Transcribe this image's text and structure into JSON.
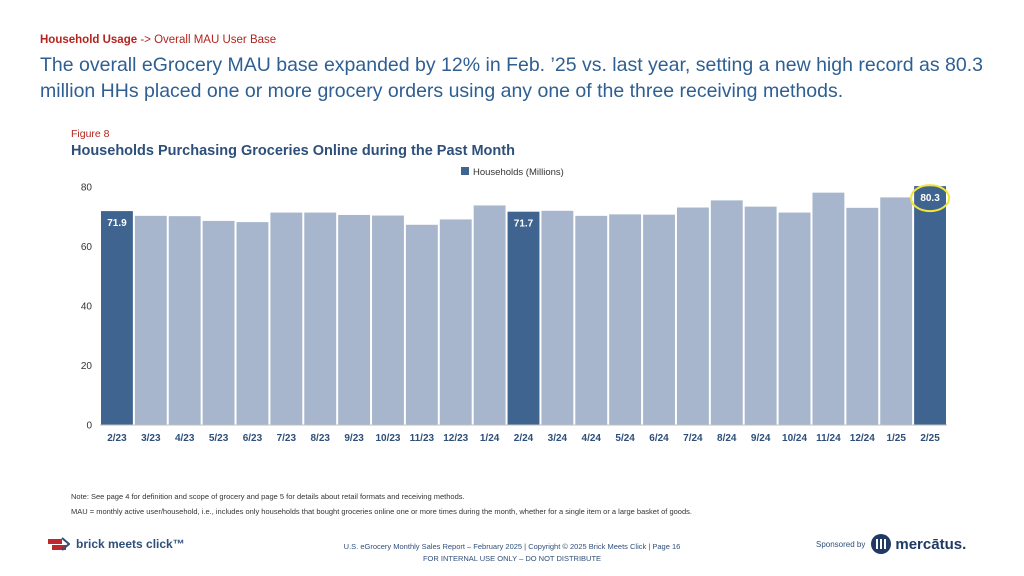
{
  "header": {
    "section": "Household Usage",
    "arrow": "->",
    "subsection": "Overall MAU User Base",
    "headline": "The overall eGrocery MAU base expanded by 12% in Feb. ’25 vs. last year, setting a new high record as 80.3 million HHs placed one or more grocery orders using any one of the three receiving methods."
  },
  "figure": {
    "label": "Figure 8",
    "title": "Households Purchasing Groceries Online during the Past Month"
  },
  "chart_data": {
    "type": "bar",
    "legend": {
      "label": "Households (Millions)",
      "position": "top-center"
    },
    "categories": [
      "2/23",
      "3/23",
      "4/23",
      "5/23",
      "6/23",
      "7/23",
      "8/23",
      "9/23",
      "10/23",
      "11/23",
      "12/23",
      "1/24",
      "2/24",
      "3/24",
      "4/24",
      "5/24",
      "6/24",
      "7/24",
      "8/24",
      "9/24",
      "10/24",
      "11/24",
      "12/24",
      "1/25",
      "2/25"
    ],
    "values": [
      71.9,
      70.3,
      70.2,
      68.6,
      68.2,
      71.4,
      71.4,
      70.6,
      70.4,
      67.3,
      69.1,
      73.8,
      71.7,
      72.0,
      70.3,
      70.8,
      70.7,
      73.1,
      75.5,
      73.4,
      71.4,
      78.1,
      73.0,
      76.5,
      80.3
    ],
    "highlight": [
      0,
      12,
      24
    ],
    "data_labels": {
      "0": "71.9",
      "12": "71.7",
      "24": "80.3"
    },
    "circled_label": 24,
    "ylim": [
      0,
      80
    ],
    "yticks": [
      0,
      20,
      40,
      60,
      80
    ],
    "colors": {
      "base": "#a7b6cc",
      "highlight": "#3f6490",
      "circle": "#f2e53a"
    },
    "grid": false
  },
  "notes": {
    "line1": "Note: See page 4 for definition and scope of grocery and page 5 for details about retail formats and receiving methods.",
    "line2": "MAU = monthly active user/household, i.e., includes only households that bought groceries online one or more times during the month, whether for a single item or a large basket of goods."
  },
  "footer": {
    "line1": "U.S. eGrocery Monthly Sales Report – February 2025   |   Copyright © 2025 Brick Meets Click   |   Page 16",
    "line2": "FOR INTERNAL USE ONLY – DO NOT DISTRIBUTE",
    "left_logo": "brick meets click™",
    "sponsored_by": "Sponsored by",
    "sponsor_name": "mercātus."
  }
}
